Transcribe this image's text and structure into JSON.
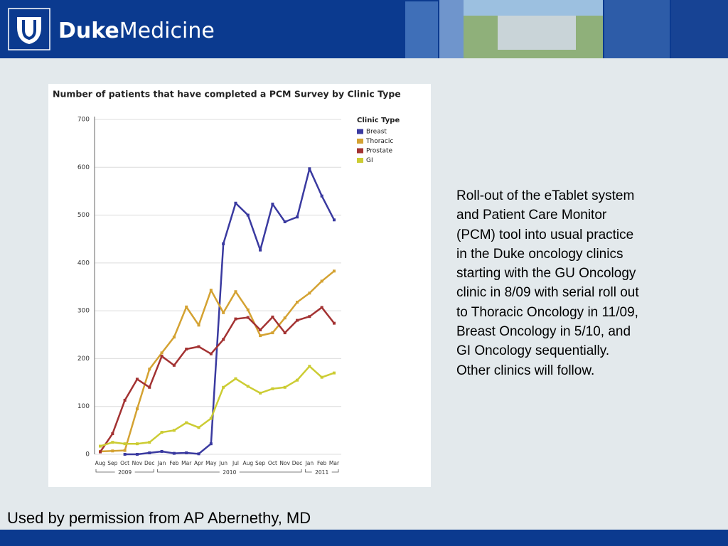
{
  "header": {
    "logo_bold": "Duke",
    "logo_regular": "Medicine"
  },
  "chart_data": {
    "type": "line",
    "title": "Number of patients that have completed a PCM Survey by Clinic Type",
    "categories": [
      "Aug",
      "Sep",
      "Oct",
      "Nov",
      "Dec",
      "Jan",
      "Feb",
      "Mar",
      "Apr",
      "May",
      "Jun",
      "Jul",
      "Aug",
      "Sep",
      "Oct",
      "Nov",
      "Dec",
      "Jan",
      "Feb",
      "Mar"
    ],
    "years": [
      "2009",
      "2010",
      "2011"
    ],
    "legend_title": "Clinic Type",
    "series": [
      {
        "name": "Breast",
        "color": "#3a3aa0",
        "values": [
          null,
          null,
          0,
          0,
          3,
          6,
          2,
          3,
          1,
          22,
          440,
          525,
          500,
          427,
          523,
          486,
          496,
          597,
          540,
          490
        ]
      },
      {
        "name": "Thoracic",
        "color": "#d4a232",
        "values": [
          6,
          7,
          8,
          95,
          178,
          212,
          245,
          308,
          270,
          343,
          296,
          340,
          302,
          248,
          254,
          285,
          318,
          337,
          362,
          383
        ]
      },
      {
        "name": "Prostate",
        "color": "#a33232",
        "values": [
          5,
          43,
          113,
          157,
          140,
          205,
          186,
          220,
          225,
          210,
          240,
          283,
          286,
          260,
          287,
          254,
          280,
          288,
          307,
          274
        ]
      },
      {
        "name": "GI",
        "color": "#cccc33",
        "values": [
          17,
          25,
          22,
          22,
          25,
          46,
          50,
          66,
          56,
          75,
          140,
          158,
          142,
          128,
          137,
          140,
          155,
          184,
          161,
          170
        ]
      }
    ],
    "ylim": [
      0,
      700
    ],
    "yticks": [
      0,
      100,
      200,
      300,
      400,
      500,
      600,
      700
    ],
    "grid": true
  },
  "description": [
    "Roll-out of the eTablet system",
    "and Patient Care Monitor",
    "(PCM) tool into usual practice",
    "in the Duke oncology clinics",
    "starting with the GU Oncology",
    "clinic in 8/09 with serial roll out",
    "to Thoracic Oncology in 11/09,",
    "Breast Oncology in 5/10, and",
    "GI Oncology sequentially.",
    "Other clinics will follow."
  ],
  "footer": "Used by permission from AP Abernethy, MD"
}
